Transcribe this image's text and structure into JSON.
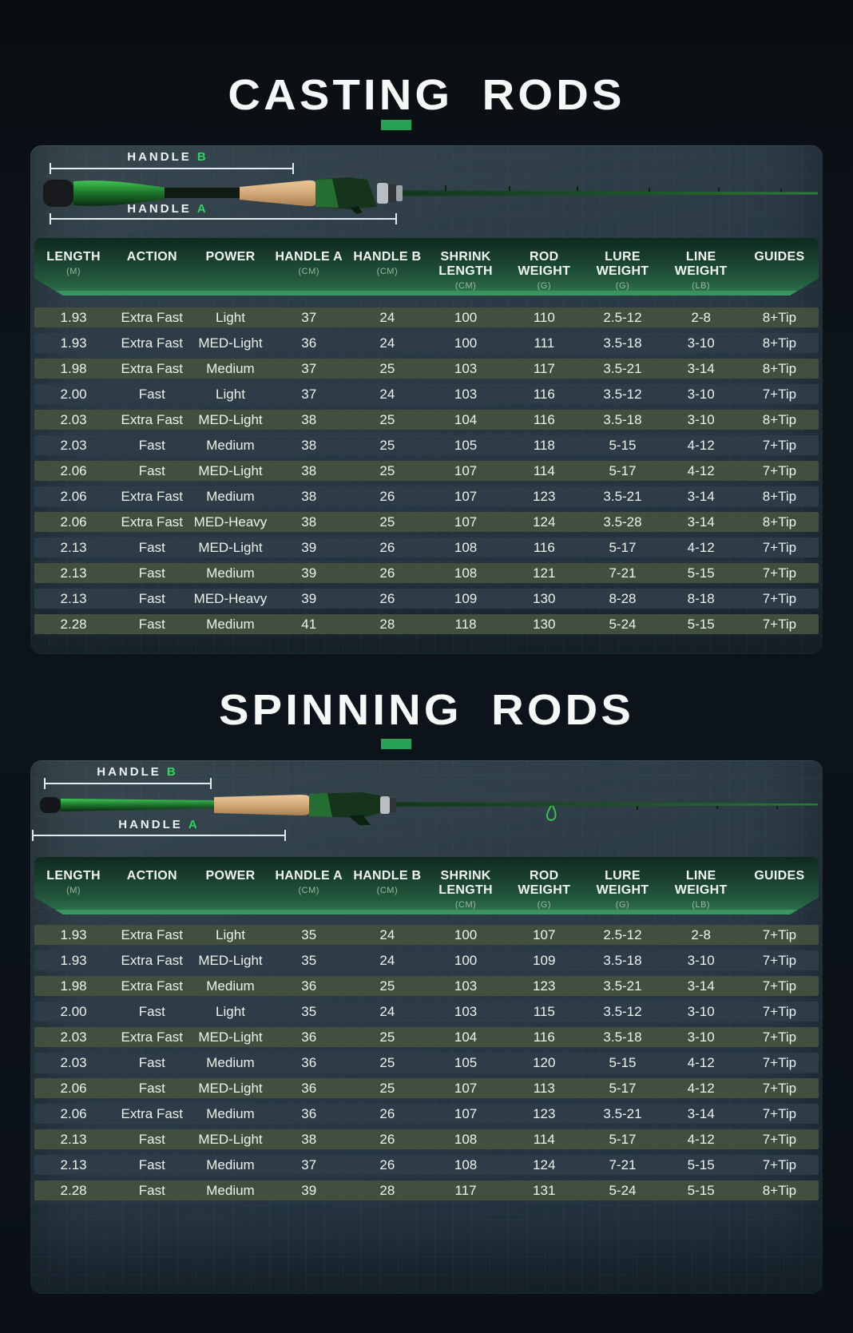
{
  "accent": {
    "bar_green": "#27a254",
    "handle_letter_green": "#2fd45e",
    "header_green_dark": "#10291f",
    "header_green_light": "#2e7a4d",
    "row_green": "#41503e",
    "row_dark_blue": "#2d3c47"
  },
  "sections": [
    {
      "title": "CASTING RODS",
      "diagram": {
        "handle_b": {
          "word": "HANDLE",
          "letter": "B"
        },
        "handle_a": {
          "word": "HANDLE",
          "letter": "A"
        }
      },
      "table": {
        "columns": [
          {
            "label": "LENGTH",
            "unit": "(M)"
          },
          {
            "label": "ACTION",
            "unit": ""
          },
          {
            "label": "POWER",
            "unit": ""
          },
          {
            "label": "HANDLE A",
            "unit": "(CM)"
          },
          {
            "label": "HANDLE B",
            "unit": "(CM)"
          },
          {
            "label": "SHRINK LENGTH",
            "unit": "(CM)"
          },
          {
            "label": "ROD WEIGHT",
            "unit": "(G)"
          },
          {
            "label": "LURE WEIGHT",
            "unit": "(G)"
          },
          {
            "label": "LINE WEIGHT",
            "unit": "(LB)"
          },
          {
            "label": "GUIDES",
            "unit": ""
          }
        ],
        "rows": [
          [
            "1.93",
            "Extra Fast",
            "Light",
            "37",
            "24",
            "100",
            "110",
            "2.5-12",
            "2-8",
            "8+Tip"
          ],
          [
            "1.93",
            "Extra Fast",
            "MED-Light",
            "36",
            "24",
            "100",
            "111",
            "3.5-18",
            "3-10",
            "8+Tip"
          ],
          [
            "1.98",
            "Extra Fast",
            "Medium",
            "37",
            "25",
            "103",
            "117",
            "3.5-21",
            "3-14",
            "8+Tip"
          ],
          [
            "2.00",
            "Fast",
            "Light",
            "37",
            "24",
            "103",
            "116",
            "3.5-12",
            "3-10",
            "7+Tip"
          ],
          [
            "2.03",
            "Extra Fast",
            "MED-Light",
            "38",
            "25",
            "104",
            "116",
            "3.5-18",
            "3-10",
            "8+Tip"
          ],
          [
            "2.03",
            "Fast",
            "Medium",
            "38",
            "25",
            "105",
            "118",
            "5-15",
            "4-12",
            "7+Tip"
          ],
          [
            "2.06",
            "Fast",
            "MED-Light",
            "38",
            "25",
            "107",
            "114",
            "5-17",
            "4-12",
            "7+Tip"
          ],
          [
            "2.06",
            "Extra Fast",
            "Medium",
            "38",
            "26",
            "107",
            "123",
            "3.5-21",
            "3-14",
            "8+Tip"
          ],
          [
            "2.06",
            "Extra Fast",
            "MED-Heavy",
            "38",
            "25",
            "107",
            "124",
            "3.5-28",
            "3-14",
            "8+Tip"
          ],
          [
            "2.13",
            "Fast",
            "MED-Light",
            "39",
            "26",
            "108",
            "116",
            "5-17",
            "4-12",
            "7+Tip"
          ],
          [
            "2.13",
            "Fast",
            "Medium",
            "39",
            "26",
            "108",
            "121",
            "7-21",
            "5-15",
            "7+Tip"
          ],
          [
            "2.13",
            "Fast",
            "MED-Heavy",
            "39",
            "26",
            "109",
            "130",
            "8-28",
            "8-18",
            "7+Tip"
          ],
          [
            "2.28",
            "Fast",
            "Medium",
            "41",
            "28",
            "118",
            "130",
            "5-24",
            "5-15",
            "7+Tip"
          ]
        ]
      }
    },
    {
      "title": "SPINNING RODS",
      "diagram": {
        "handle_b": {
          "word": "HANDLE",
          "letter": "B"
        },
        "handle_a": {
          "word": "HANDLE",
          "letter": "A"
        }
      },
      "table": {
        "columns": [
          {
            "label": "LENGTH",
            "unit": "(M)"
          },
          {
            "label": "ACTION",
            "unit": ""
          },
          {
            "label": "POWER",
            "unit": ""
          },
          {
            "label": "HANDLE A",
            "unit": "(CM)"
          },
          {
            "label": "HANDLE B",
            "unit": "(CM)"
          },
          {
            "label": "SHRINK LENGTH",
            "unit": "(CM)"
          },
          {
            "label": "ROD WEIGHT",
            "unit": "(G)"
          },
          {
            "label": "LURE WEIGHT",
            "unit": "(G)"
          },
          {
            "label": "LINE WEIGHT",
            "unit": "(LB)"
          },
          {
            "label": "GUIDES",
            "unit": ""
          }
        ],
        "rows": [
          [
            "1.93",
            "Extra Fast",
            "Light",
            "35",
            "24",
            "100",
            "107",
            "2.5-12",
            "2-8",
            "7+Tip"
          ],
          [
            "1.93",
            "Extra Fast",
            "MED-Light",
            "35",
            "24",
            "100",
            "109",
            "3.5-18",
            "3-10",
            "7+Tip"
          ],
          [
            "1.98",
            "Extra Fast",
            "Medium",
            "36",
            "25",
            "103",
            "123",
            "3.5-21",
            "3-14",
            "7+Tip"
          ],
          [
            "2.00",
            "Fast",
            "Light",
            "35",
            "24",
            "103",
            "115",
            "3.5-12",
            "3-10",
            "7+Tip"
          ],
          [
            "2.03",
            "Extra Fast",
            "MED-Light",
            "36",
            "25",
            "104",
            "116",
            "3.5-18",
            "3-10",
            "7+Tip"
          ],
          [
            "2.03",
            "Fast",
            "Medium",
            "36",
            "25",
            "105",
            "120",
            "5-15",
            "4-12",
            "7+Tip"
          ],
          [
            "2.06",
            "Fast",
            "MED-Light",
            "36",
            "25",
            "107",
            "113",
            "5-17",
            "4-12",
            "7+Tip"
          ],
          [
            "2.06",
            "Extra Fast",
            "Medium",
            "36",
            "26",
            "107",
            "123",
            "3.5-21",
            "3-14",
            "7+Tip"
          ],
          [
            "2.13",
            "Fast",
            "MED-Light",
            "38",
            "26",
            "108",
            "114",
            "5-17",
            "4-12",
            "7+Tip"
          ],
          [
            "2.13",
            "Fast",
            "Medium",
            "37",
            "26",
            "108",
            "124",
            "7-21",
            "5-15",
            "7+Tip"
          ],
          [
            "2.28",
            "Fast",
            "Medium",
            "39",
            "28",
            "117",
            "131",
            "5-24",
            "5-15",
            "8+Tip"
          ]
        ]
      }
    }
  ]
}
